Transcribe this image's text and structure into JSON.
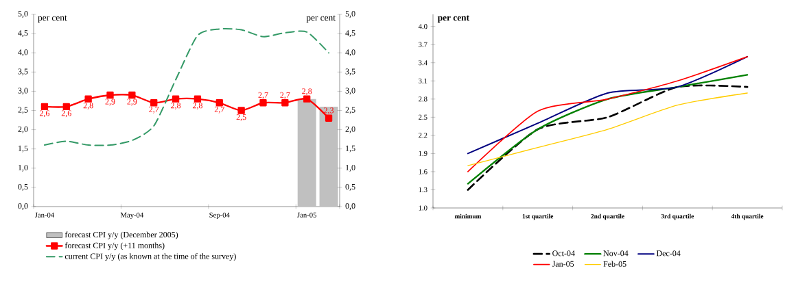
{
  "chart_data": [
    {
      "type": "line",
      "categories": [
        "Jan-04",
        null,
        null,
        null,
        "May-04",
        null,
        null,
        null,
        "Sep-04",
        null,
        null,
        null,
        "Jan-05",
        null
      ],
      "ylim": [
        0,
        5
      ],
      "yticks": [
        {
          "value": 0,
          "label": "0,0"
        },
        {
          "value": 0.5,
          "label": "0,5"
        },
        {
          "value": 1,
          "label": "1,0"
        },
        {
          "value": 1.5,
          "label": "1,5"
        },
        {
          "value": 2,
          "label": "2,0"
        },
        {
          "value": 2.5,
          "label": "2,5"
        },
        {
          "value": 3,
          "label": "3,0"
        },
        {
          "value": 3.5,
          "label": "3,5"
        },
        {
          "value": 4,
          "label": "4,0"
        },
        {
          "value": 4.5,
          "label": "4,5"
        },
        {
          "value": 5,
          "label": "5,0"
        }
      ],
      "y2lim": [
        0,
        5
      ],
      "y2ticks": [
        {
          "value": 0,
          "label": "0,0"
        },
        {
          "value": 0.5,
          "label": "0,5"
        },
        {
          "value": 1,
          "label": "1,0"
        },
        {
          "value": 1.5,
          "label": "1,5"
        },
        {
          "value": 2,
          "label": "2,0"
        },
        {
          "value": 2.5,
          "label": "2,5"
        },
        {
          "value": 3,
          "label": "3,0"
        },
        {
          "value": 3.5,
          "label": "3,5"
        },
        {
          "value": 4,
          "label": "4,0"
        },
        {
          "value": 4.5,
          "label": "4,5"
        },
        {
          "value": 5,
          "label": "5,0"
        }
      ],
      "ylabel": "per cent",
      "y2label": "per cent",
      "legend": "bottom",
      "series": [
        {
          "name": "forecast CPI y/y (December 2005)",
          "type": "bar",
          "color": "#c0c0c0",
          "values": [
            null,
            null,
            null,
            null,
            null,
            null,
            null,
            null,
            null,
            null,
            null,
            null,
            2.8,
            2.6
          ]
        },
        {
          "name": "forecast CPI y/y (+11 months)",
          "color": "#ff0000",
          "marker": "square",
          "values": [
            2.6,
            2.6,
            2.8,
            2.9,
            2.9,
            2.7,
            2.8,
            2.8,
            2.7,
            2.5,
            2.7,
            2.7,
            2.8,
            2.3
          ],
          "value_labels": [
            "2,6",
            "2,6",
            "2,8",
            "2,9",
            "2,9",
            "2,7",
            "2,8",
            "2,8",
            "2,7",
            "2,5",
            "2,7",
            "2,7",
            "2,8",
            "2,3"
          ]
        },
        {
          "name": "current CPI y/y (as known at the time of the survey)",
          "color": "#339966",
          "line_style": "dashed",
          "values": [
            1.6,
            1.7,
            1.6,
            1.6,
            1.72,
            2.1,
            3.3,
            4.45,
            4.62,
            4.6,
            4.42,
            4.52,
            4.54,
            4.0
          ]
        }
      ]
    },
    {
      "type": "line",
      "categories": [
        "minimum",
        "1st quartile",
        "2nd quartile",
        "3rd quartile",
        "4th quartile"
      ],
      "ylim": [
        1.0,
        4.2
      ],
      "yticks": [
        {
          "value": 1.0,
          "label": "1.0"
        },
        {
          "value": 1.3,
          "label": "1.3"
        },
        {
          "value": 1.6,
          "label": "1.6"
        },
        {
          "value": 1.9,
          "label": "1.9"
        },
        {
          "value": 2.2,
          "label": "2.2"
        },
        {
          "value": 2.5,
          "label": "2.5"
        },
        {
          "value": 2.8,
          "label": "2.8"
        },
        {
          "value": 3.1,
          "label": "3.1"
        },
        {
          "value": 3.4,
          "label": "3.4"
        },
        {
          "value": 3.7,
          "label": "3.7"
        },
        {
          "value": 4.0,
          "label": "4.0"
        }
      ],
      "ylabel": "per cent",
      "legend": "bottom",
      "series": [
        {
          "name": "Oct-04",
          "color": "#000000",
          "line_style": "dashed",
          "values": [
            1.3,
            2.3,
            2.5,
            3.0,
            3.0
          ]
        },
        {
          "name": "Nov-04",
          "color": "#008000",
          "values": [
            1.4,
            2.3,
            2.8,
            3.0,
            3.2
          ]
        },
        {
          "name": "Dec-04",
          "color": "#000080",
          "values": [
            1.9,
            2.4,
            2.9,
            3.0,
            3.5
          ]
        },
        {
          "name": "Jan-05",
          "color": "#ff0000",
          "values": [
            1.6,
            2.6,
            2.8,
            3.1,
            3.5
          ]
        },
        {
          "name": "Feb-05",
          "color": "#ffcc00",
          "values": [
            1.7,
            2.0,
            2.3,
            2.7,
            2.9
          ]
        }
      ]
    }
  ]
}
